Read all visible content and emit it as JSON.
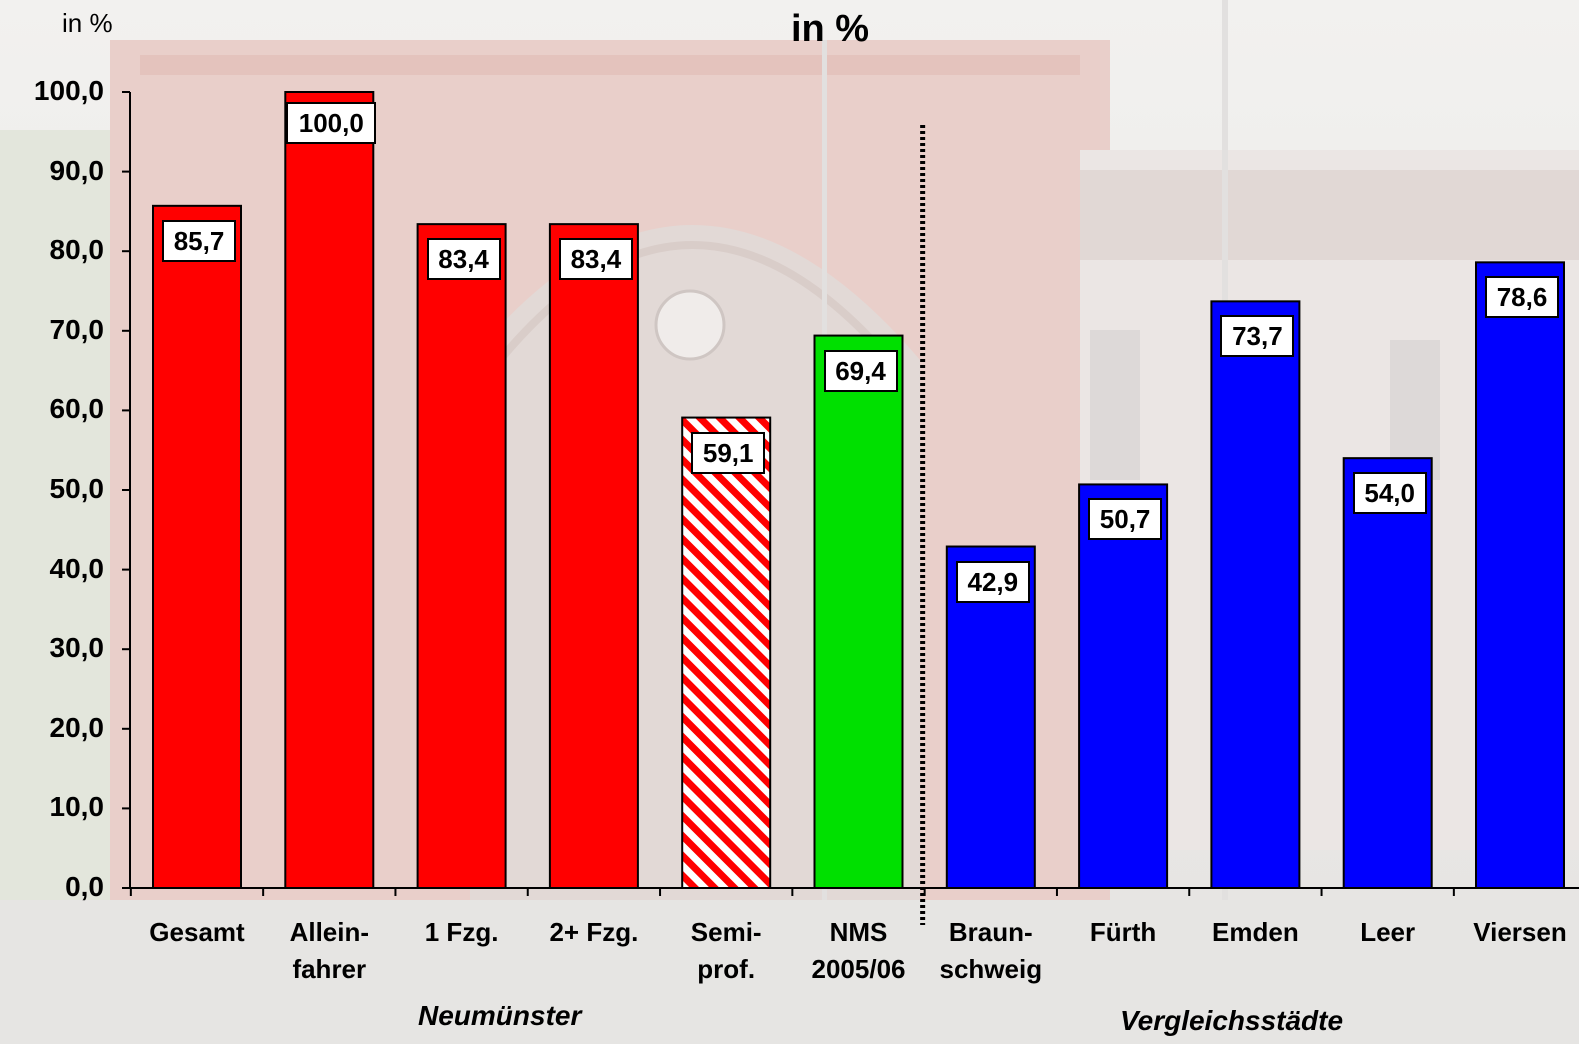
{
  "chart_data": {
    "type": "bar",
    "title": "in %",
    "ylabel": "in %",
    "ylim": [
      0,
      100
    ],
    "ytick_labels": [
      "0,0",
      "10,0",
      "20,0",
      "30,0",
      "40,0",
      "50,0",
      "60,0",
      "70,0",
      "80,0",
      "90,0",
      "100,0"
    ],
    "categories": [
      "Gesamt",
      "Allein-\nfahrer",
      "1 Fzg.",
      "2+ Fzg.",
      "Semi-\nprof.",
      "NMS\n2005/06",
      "Braun-\nschweig",
      "Fürth",
      "Emden",
      "Leer",
      "Viersen"
    ],
    "values": [
      85.7,
      100.0,
      83.4,
      83.4,
      59.1,
      69.4,
      42.9,
      50.7,
      73.7,
      54.0,
      78.6
    ],
    "value_labels": [
      "85,7",
      "100,0",
      "83,4",
      "83,4",
      "59,1",
      "69,4",
      "42,9",
      "50,7",
      "73,7",
      "54,0",
      "78,6"
    ],
    "bar_colors": [
      "#ff0000",
      "#ff0000",
      "#ff0000",
      "#ff0000",
      "hatched-red",
      "#00e000",
      "#0000ff",
      "#0000ff",
      "#0000ff",
      "#0000ff",
      "#0000ff"
    ],
    "groups": [
      {
        "label": "Neumünster",
        "categories": [
          "Gesamt",
          "Allein-\nfahrer",
          "1 Fzg.",
          "2+ Fzg.",
          "Semi-\nprof.",
          "NMS\n2005/06"
        ]
      },
      {
        "label": "Vergleichsstädte",
        "categories": [
          "Braun-\nschweig",
          "Fürth",
          "Emden",
          "Leer",
          "Viersen"
        ]
      }
    ],
    "divider_after_category": "NMS\n2005/06",
    "grid": false,
    "background": "faded photo of a railway station building"
  }
}
